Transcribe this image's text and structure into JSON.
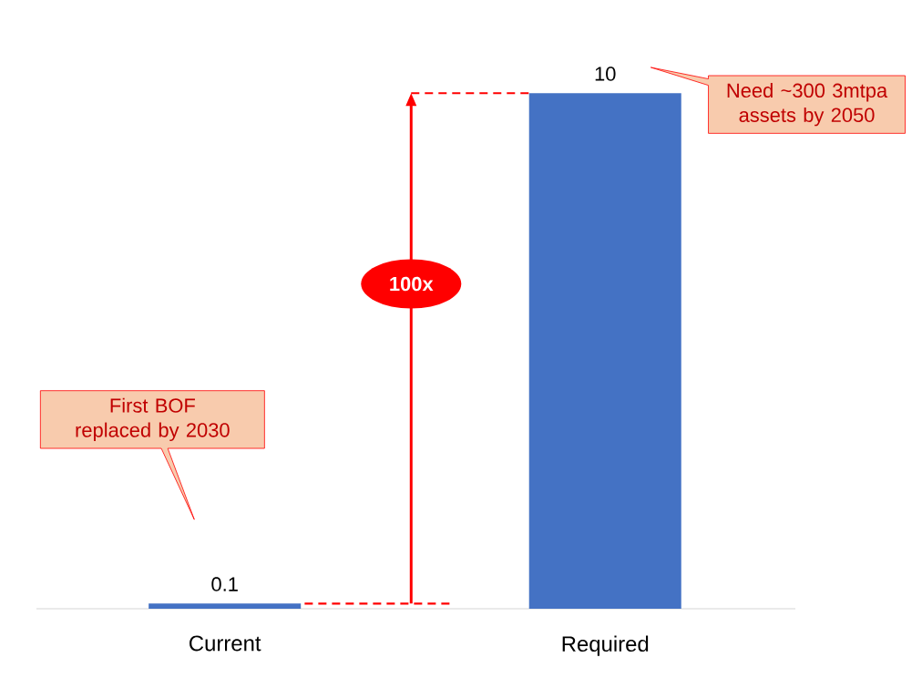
{
  "chart_data": {
    "type": "bar",
    "categories": [
      "Current",
      "Required"
    ],
    "values": [
      0.1,
      10
    ],
    "color": "#4472c4",
    "data_labels": true,
    "ref_lines": [
      {
        "axis": "y",
        "value": 10,
        "color": "#ff0000",
        "line_style": "dashed"
      },
      {
        "axis": "y",
        "value": 0.1,
        "color": "#ff0000",
        "line_style": "dashed"
      }
    ],
    "annotations": [
      "Need ~300 3mtpa assets by 2050",
      "First BOF replaced by 2030",
      "100x"
    ]
  }
}
